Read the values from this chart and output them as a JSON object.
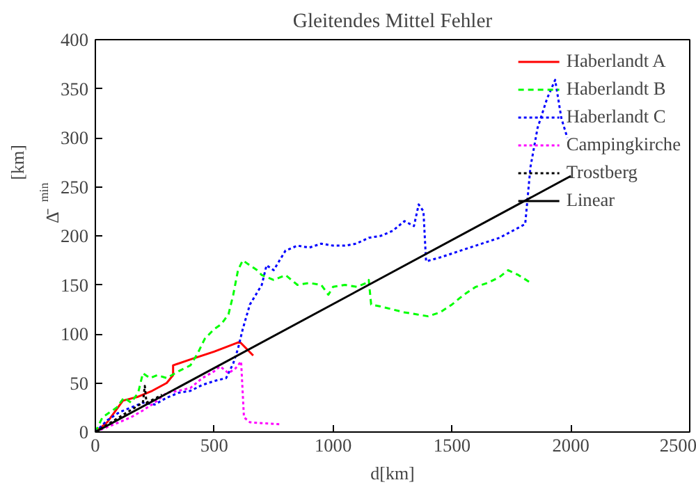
{
  "chart_data": {
    "type": "line",
    "title": "Gleitendes Mittel Fehler",
    "xlabel": "d[km]",
    "ylabel": "Δ̄$_{min}$[km]",
    "xlim": [
      0,
      2500
    ],
    "ylim": [
      0,
      400
    ],
    "xticks": [
      0,
      500,
      1000,
      1500,
      2000,
      2500
    ],
    "yticks": [
      0,
      50,
      100,
      150,
      200,
      250,
      300,
      350,
      400
    ],
    "grid": false,
    "legend": "top right",
    "marker": "none",
    "series": [
      {
        "name": "Haberlandt A",
        "color": "#ff0000",
        "line_style": "solid",
        "x": [
          0,
          50,
          116,
          180,
          239,
          300,
          327,
          327,
          400,
          500,
          607,
          664
        ],
        "values": [
          0,
          10,
          32,
          36,
          42,
          50,
          58,
          68,
          74,
          82,
          92,
          78
        ]
      },
      {
        "name": "Haberlandt B",
        "color": "#00ff00",
        "line_style": "dashed",
        "x": [
          0,
          30,
          60,
          90,
          120,
          150,
          180,
          200,
          230,
          260,
          300,
          350,
          400,
          430,
          460,
          500,
          530,
          560,
          580,
          600,
          620,
          650,
          680,
          700,
          750,
          800,
          850,
          900,
          950,
          980,
          1000,
          1050,
          1100,
          1140,
          1150,
          1160,
          1200,
          1250,
          1300,
          1350,
          1400,
          1450,
          1500,
          1550,
          1600,
          1650,
          1700,
          1736,
          1780,
          1832
        ],
        "values": [
          0,
          15,
          20,
          25,
          35,
          30,
          40,
          60,
          55,
          58,
          55,
          62,
          68,
          80,
          95,
          105,
          110,
          120,
          140,
          165,
          175,
          170,
          165,
          160,
          155,
          160,
          150,
          152,
          150,
          140,
          148,
          150,
          148,
          152,
          155,
          130,
          128,
          125,
          122,
          120,
          118,
          122,
          130,
          140,
          148,
          152,
          158,
          165,
          160,
          152
        ]
      },
      {
        "name": "Haberlandt C",
        "color": "#0000ff",
        "line_style": "dotted",
        "x": [
          0,
          50,
          100,
          150,
          200,
          250,
          300,
          350,
          400,
          450,
          500,
          550,
          580,
          600,
          620,
          650,
          700,
          720,
          750,
          800,
          850,
          900,
          950,
          1000,
          1050,
          1097,
          1150,
          1200,
          1250,
          1300,
          1340,
          1360,
          1380,
          1391,
          1450,
          1500,
          1600,
          1700,
          1808,
          1830,
          1860,
          1900,
          1934,
          1960,
          1985
        ],
        "values": [
          0,
          12,
          20,
          25,
          30,
          28,
          35,
          40,
          42,
          48,
          52,
          55,
          70,
          85,
          105,
          130,
          150,
          170,
          165,
          185,
          190,
          188,
          192,
          190,
          190,
          192,
          198,
          200,
          205,
          215,
          210,
          232,
          225,
          174,
          178,
          182,
          190,
          198,
          212,
          270,
          310,
          340,
          359,
          320,
          300
        ]
      },
      {
        "name": "Campingkirche",
        "color": "#ff00ff",
        "line_style": "dotted",
        "x": [
          0,
          50,
          100,
          150,
          200,
          250,
          300,
          350,
          400,
          450,
          500,
          525,
          560,
          590,
          613,
          625,
          650,
          700,
          778
        ],
        "values": [
          0,
          5,
          10,
          15,
          22,
          30,
          40,
          42,
          45,
          55,
          62,
          67,
          60,
          65,
          72,
          15,
          10,
          9,
          8
        ]
      },
      {
        "name": "Trostberg",
        "color": "#000000",
        "line_style": "dotted",
        "x": [
          0,
          40,
          80,
          120,
          160,
          200,
          208,
          215,
          250,
          280
        ],
        "values": [
          0,
          6,
          12,
          18,
          24,
          30,
          47,
          30,
          34,
          38
        ]
      },
      {
        "name": "Linear",
        "color": "#000000",
        "line_style": "solid",
        "x": [
          0,
          2000
        ],
        "values": [
          0,
          261
        ]
      }
    ]
  }
}
